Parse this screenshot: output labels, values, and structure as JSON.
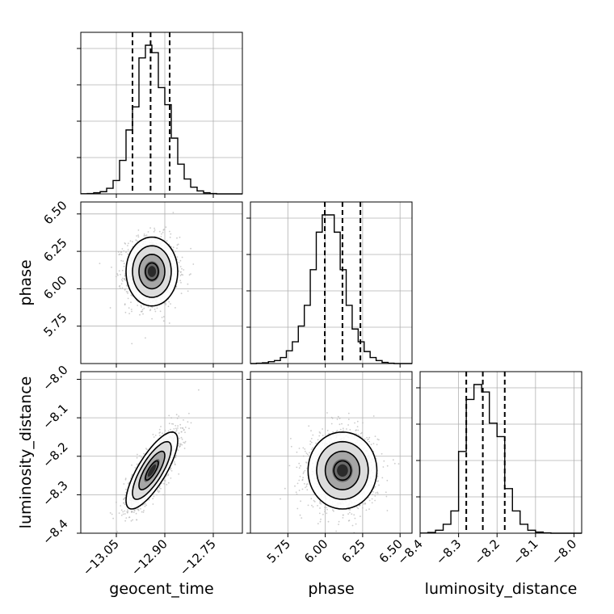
{
  "chart_data": {
    "type": "corner",
    "parameters": [
      "geocent_time",
      "phase",
      "luminosity_distance"
    ],
    "ranges": {
      "geocent_time": [
        -13.16,
        -12.66
      ],
      "phase": [
        5.5,
        6.58
      ],
      "luminosity_distance": [
        -8.4,
        -7.98
      ]
    },
    "ticks": {
      "geocent_time": [
        "−13.05",
        "−12.90",
        "−12.75"
      ],
      "phase": [
        "5.75",
        "6.00",
        "6.25",
        "6.50"
      ],
      "luminosity_distance": [
        "−8.4",
        "−8.3",
        "−8.2",
        "−8.1",
        "−8.0"
      ]
    },
    "tick_values": {
      "geocent_time": [
        -13.05,
        -12.9,
        -12.75
      ],
      "phase": [
        5.75,
        6.0,
        6.25,
        6.5
      ],
      "luminosity_distance": [
        -8.4,
        -8.3,
        -8.2,
        -8.1,
        -8.0
      ]
    },
    "histograms": [
      {
        "parameter": "geocent_time",
        "quantiles": [
          -13.0,
          -12.944,
          -12.885
        ],
        "bin_edges": [
          -13.16,
          -13.14,
          -13.12,
          -13.1,
          -13.08,
          -13.06,
          -13.04,
          -13.02,
          -13.0,
          -12.98,
          -12.96,
          -12.94,
          -12.92,
          -12.9,
          -12.88,
          -12.86,
          -12.84,
          -12.82,
          -12.8,
          -12.78,
          -12.76,
          -12.74,
          -12.72,
          -12.7,
          -12.68,
          -12.66
        ],
        "counts": [
          0.5,
          1,
          3,
          6,
          15,
          36,
          90,
          172,
          234,
          366,
          400,
          380,
          286,
          240,
          150,
          80,
          40,
          18,
          8,
          3,
          1,
          0,
          0,
          0,
          0
        ]
      },
      {
        "parameter": "phase",
        "quantiles": [
          5.997,
          6.115,
          6.235
        ],
        "bin_edges": [
          5.5,
          5.54,
          5.58,
          5.62,
          5.66,
          5.7,
          5.74,
          5.78,
          5.82,
          5.86,
          5.9,
          5.94,
          5.98,
          6.02,
          6.06,
          6.1,
          6.14,
          6.18,
          6.22,
          6.26,
          6.3,
          6.34,
          6.38,
          6.42,
          6.46,
          6.5,
          6.54,
          6.58
        ],
        "counts": [
          0,
          1,
          2,
          5,
          8,
          16,
          34,
          58,
          100,
          155,
          250,
          350,
          396,
          396,
          350,
          250,
          155,
          92,
          58,
          32,
          16,
          8,
          3,
          1,
          0,
          0,
          0
        ]
      },
      {
        "parameter": "luminosity_distance",
        "quantiles": [
          -8.28,
          -8.237,
          -8.18
        ],
        "bin_edges": [
          -8.4,
          -8.38,
          -8.36,
          -8.34,
          -8.32,
          -8.3,
          -8.28,
          -8.26,
          -8.24,
          -8.22,
          -8.2,
          -8.18,
          -8.16,
          -8.14,
          -8.12,
          -8.1,
          -8.08,
          -8.06,
          -8.04,
          -8.02,
          -8.0,
          -7.98
        ],
        "counts": [
          0.5,
          2,
          8,
          24,
          60,
          220,
          360,
          400,
          380,
          296,
          260,
          120,
          60,
          24,
          8,
          3,
          1,
          0,
          0,
          0,
          0
        ]
      }
    ],
    "pairs": [
      {
        "x": "geocent_time",
        "y": "phase",
        "mean": [
          -12.94,
          6.115
        ],
        "std": [
          0.04,
          0.115
        ],
        "corr": 0.0
      },
      {
        "x": "geocent_time",
        "y": "luminosity_distance",
        "mean": [
          -12.94,
          -8.237
        ],
        "std": [
          0.04,
          0.05
        ],
        "corr": 0.78
      },
      {
        "x": "phase",
        "y": "luminosity_distance",
        "mean": [
          6.115,
          -8.237
        ],
        "std": [
          0.115,
          0.05
        ],
        "corr": 0.0
      }
    ],
    "contour_levels": [
      0.5,
      1.0,
      1.5,
      2.0
    ],
    "grid": true,
    "colors": {
      "line": "#000000",
      "grid": "#b0b0b0",
      "scatter": "#b5b5b5"
    }
  }
}
